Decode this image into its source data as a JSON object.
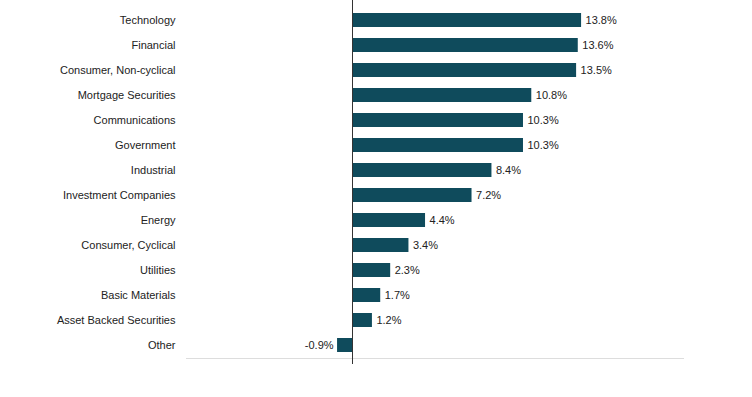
{
  "chart_data": {
    "type": "bar",
    "orientation": "horizontal",
    "categories": [
      "Technology",
      "Financial",
      "Consumer, Non-cyclical",
      "Mortgage Securities",
      "Communications",
      "Government",
      "Industrial",
      "Investment Companies",
      "Energy",
      "Consumer, Cyclical",
      "Utilities",
      "Basic Materials",
      "Asset Backed Securities",
      "Other"
    ],
    "values": [
      13.8,
      13.6,
      13.5,
      10.8,
      10.3,
      10.3,
      8.4,
      7.2,
      4.4,
      3.4,
      2.3,
      1.7,
      1.2,
      -0.9
    ],
    "value_labels": [
      "13.8%",
      "13.6%",
      "13.5%",
      "10.8%",
      "10.3%",
      "10.3%",
      "8.4%",
      "7.2%",
      "4.4%",
      "3.4%",
      "2.3%",
      "1.7%",
      "1.2%",
      "-0.9%"
    ],
    "color": "#0f4b5c",
    "xlim": [
      -10,
      20
    ],
    "xticks": [
      0
    ],
    "tick_labels": "y",
    "data_labels": true,
    "grid": false
  }
}
